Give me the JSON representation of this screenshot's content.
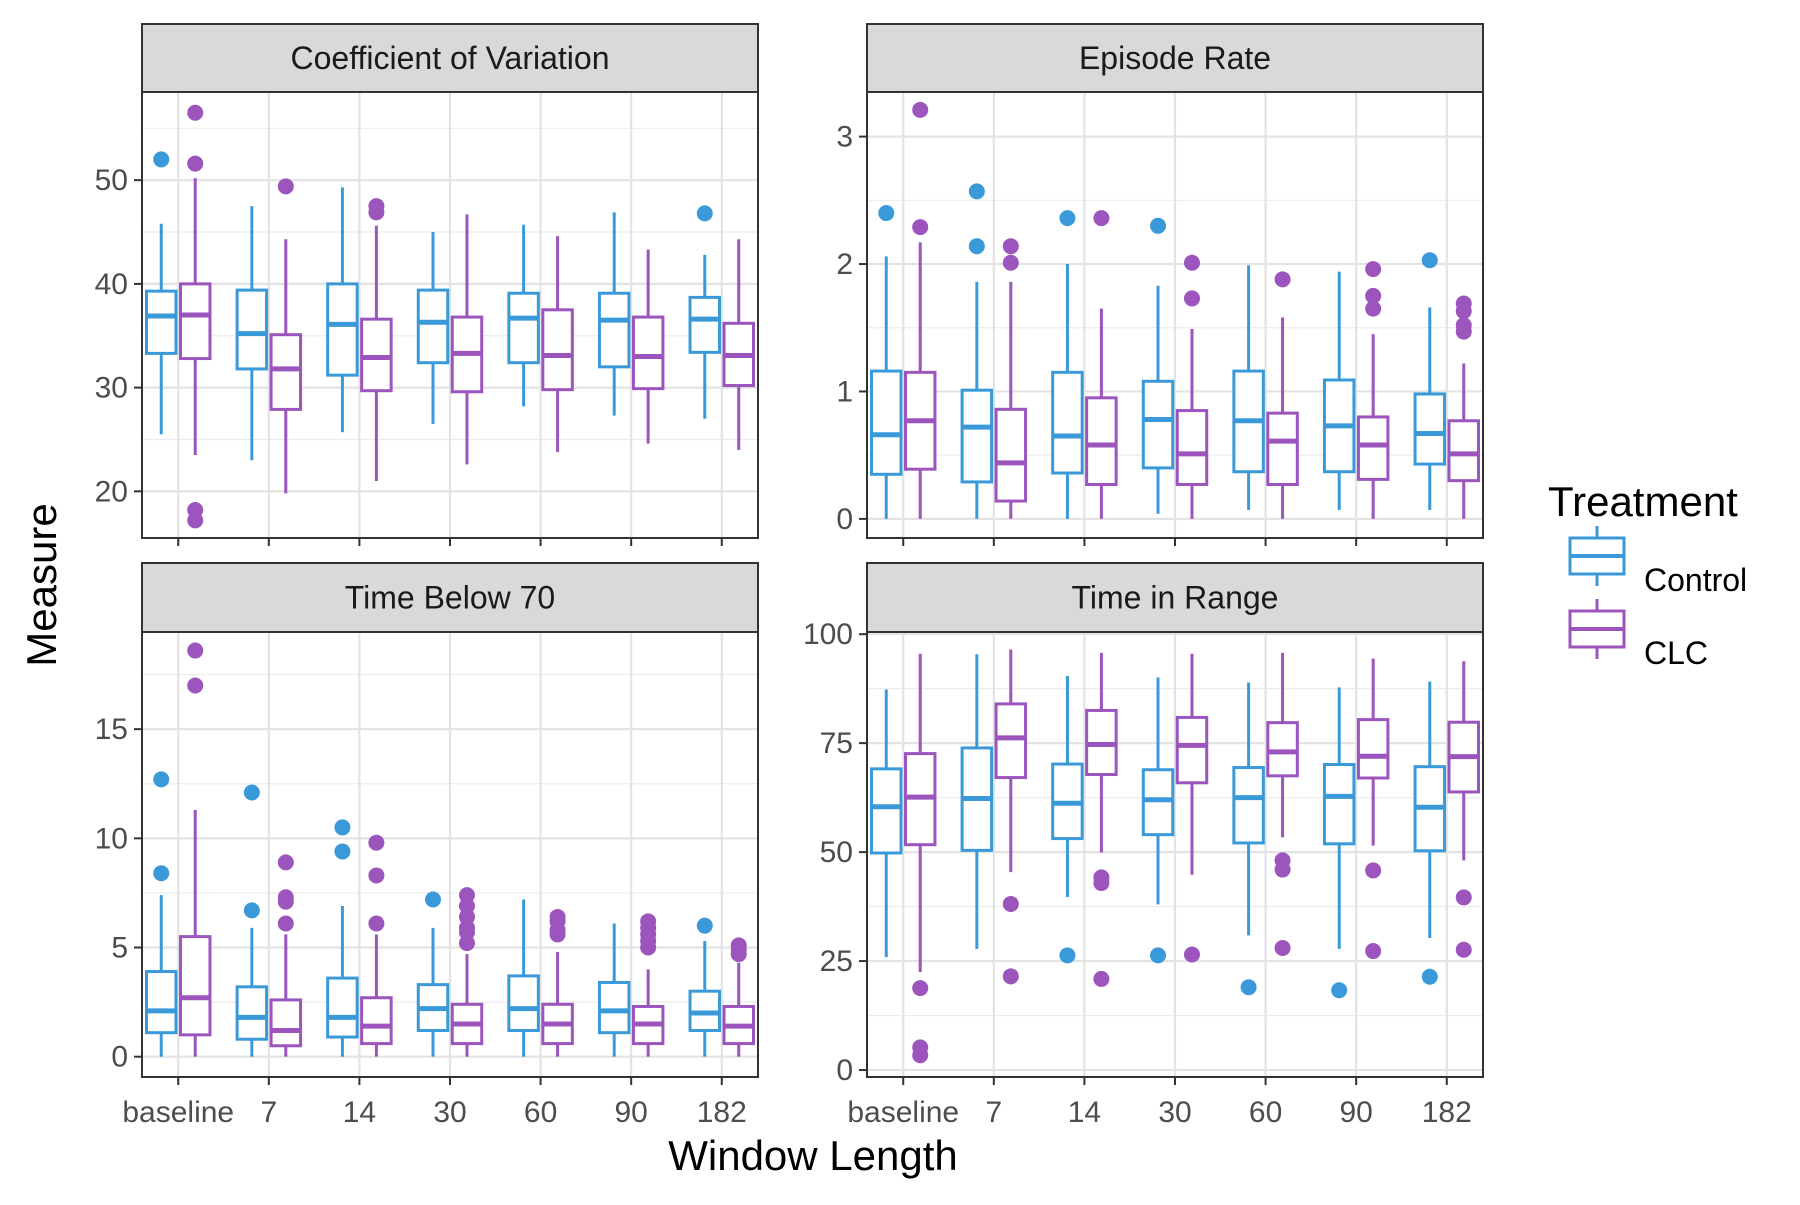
{
  "chart_data": {
    "type": "box",
    "xlabel": "Window Length",
    "ylabel": "Measure",
    "categories": [
      "baseline",
      "7",
      "14",
      "30",
      "60",
      "90",
      "182"
    ],
    "legend": {
      "title": "Treatment",
      "placement": "right",
      "entries": [
        {
          "name": "Control",
          "color": "#3a9ad9"
        },
        {
          "name": "CLC",
          "color": "#9b55bd"
        }
      ]
    },
    "grid": true,
    "panels": [
      {
        "title": "Coefficient of Variation",
        "ylim": [
          15.5,
          58.5
        ],
        "yticks": [
          20,
          30,
          40,
          50
        ],
        "series": [
          {
            "name": "Control",
            "boxes": [
              {
                "whisker_low": 25.5,
                "q1": 33.3,
                "median": 36.9,
                "q3": 39.3,
                "whisker_high": 45.8,
                "outliers": [
                  52.0
                ]
              },
              {
                "whisker_low": 23.0,
                "q1": 31.8,
                "median": 35.2,
                "q3": 39.4,
                "whisker_high": 47.5,
                "outliers": []
              },
              {
                "whisker_low": 25.7,
                "q1": 31.2,
                "median": 36.1,
                "q3": 40.0,
                "whisker_high": 49.3,
                "outliers": []
              },
              {
                "whisker_low": 26.5,
                "q1": 32.4,
                "median": 36.3,
                "q3": 39.4,
                "whisker_high": 45.0,
                "outliers": []
              },
              {
                "whisker_low": 28.2,
                "q1": 32.4,
                "median": 36.7,
                "q3": 39.1,
                "whisker_high": 45.7,
                "outliers": []
              },
              {
                "whisker_low": 27.3,
                "q1": 32.0,
                "median": 36.5,
                "q3": 39.1,
                "whisker_high": 46.9,
                "outliers": []
              },
              {
                "whisker_low": 27.0,
                "q1": 33.4,
                "median": 36.6,
                "q3": 38.7,
                "whisker_high": 42.8,
                "outliers": [
                  46.8
                ]
              }
            ]
          },
          {
            "name": "CLC",
            "boxes": [
              {
                "whisker_low": 23.5,
                "q1": 32.8,
                "median": 37.0,
                "q3": 40.0,
                "whisker_high": 50.2,
                "outliers": [
                  56.5,
                  51.6,
                  18.2,
                  17.2
                ]
              },
              {
                "whisker_low": 19.8,
                "q1": 27.9,
                "median": 31.8,
                "q3": 35.1,
                "whisker_high": 44.3,
                "outliers": [
                  49.4
                ]
              },
              {
                "whisker_low": 21.0,
                "q1": 29.7,
                "median": 32.9,
                "q3": 36.6,
                "whisker_high": 45.6,
                "outliers": [
                  47.5,
                  46.9
                ]
              },
              {
                "whisker_low": 22.6,
                "q1": 29.6,
                "median": 33.3,
                "q3": 36.8,
                "whisker_high": 46.7,
                "outliers": []
              },
              {
                "whisker_low": 23.8,
                "q1": 29.8,
                "median": 33.1,
                "q3": 37.5,
                "whisker_high": 44.6,
                "outliers": []
              },
              {
                "whisker_low": 24.6,
                "q1": 29.9,
                "median": 33.0,
                "q3": 36.8,
                "whisker_high": 43.3,
                "outliers": []
              },
              {
                "whisker_low": 24.0,
                "q1": 30.2,
                "median": 33.1,
                "q3": 36.2,
                "whisker_high": 44.3,
                "outliers": []
              }
            ]
          }
        ]
      },
      {
        "title": "Episode Rate",
        "ylim": [
          -0.15,
          3.35
        ],
        "yticks": [
          0,
          1,
          2,
          3
        ],
        "series": [
          {
            "name": "Control",
            "boxes": [
              {
                "whisker_low": 0.0,
                "q1": 0.35,
                "median": 0.66,
                "q3": 1.16,
                "whisker_high": 2.06,
                "outliers": [
                  2.4
                ]
              },
              {
                "whisker_low": 0.0,
                "q1": 0.29,
                "median": 0.72,
                "q3": 1.01,
                "whisker_high": 1.86,
                "outliers": [
                  2.57,
                  2.14
                ]
              },
              {
                "whisker_low": 0.0,
                "q1": 0.36,
                "median": 0.65,
                "q3": 1.15,
                "whisker_high": 2.0,
                "outliers": [
                  2.36
                ]
              },
              {
                "whisker_low": 0.04,
                "q1": 0.4,
                "median": 0.78,
                "q3": 1.08,
                "whisker_high": 1.83,
                "outliers": [
                  2.3
                ]
              },
              {
                "whisker_low": 0.07,
                "q1": 0.37,
                "median": 0.77,
                "q3": 1.16,
                "whisker_high": 1.99,
                "outliers": []
              },
              {
                "whisker_low": 0.07,
                "q1": 0.37,
                "median": 0.73,
                "q3": 1.09,
                "whisker_high": 1.94,
                "outliers": []
              },
              {
                "whisker_low": 0.07,
                "q1": 0.43,
                "median": 0.67,
                "q3": 0.98,
                "whisker_high": 1.66,
                "outliers": [
                  2.03
                ]
              }
            ]
          },
          {
            "name": "CLC",
            "boxes": [
              {
                "whisker_low": 0.0,
                "q1": 0.39,
                "median": 0.77,
                "q3": 1.15,
                "whisker_high": 2.17,
                "outliers": [
                  3.21,
                  2.29
                ]
              },
              {
                "whisker_low": 0.0,
                "q1": 0.14,
                "median": 0.44,
                "q3": 0.86,
                "whisker_high": 1.86,
                "outliers": [
                  2.14,
                  2.01
                ]
              },
              {
                "whisker_low": 0.0,
                "q1": 0.27,
                "median": 0.58,
                "q3": 0.95,
                "whisker_high": 1.65,
                "outliers": [
                  2.36
                ]
              },
              {
                "whisker_low": 0.0,
                "q1": 0.27,
                "median": 0.51,
                "q3": 0.85,
                "whisker_high": 1.49,
                "outliers": [
                  2.01,
                  1.73
                ]
              },
              {
                "whisker_low": 0.0,
                "q1": 0.27,
                "median": 0.61,
                "q3": 0.83,
                "whisker_high": 1.58,
                "outliers": [
                  1.88
                ]
              },
              {
                "whisker_low": 0.0,
                "q1": 0.31,
                "median": 0.58,
                "q3": 0.8,
                "whisker_high": 1.45,
                "outliers": [
                  1.96,
                  1.75,
                  1.65
                ]
              },
              {
                "whisker_low": 0.0,
                "q1": 0.3,
                "median": 0.51,
                "q3": 0.77,
                "whisker_high": 1.22,
                "outliers": [
                  1.69,
                  1.63,
                  1.52,
                  1.47
                ]
              }
            ]
          }
        ]
      },
      {
        "title": "Time Below 70",
        "ylim": [
          -0.93,
          19.45
        ],
        "yticks": [
          0,
          5,
          10,
          15
        ],
        "series": [
          {
            "name": "Control",
            "boxes": [
              {
                "whisker_low": 0.0,
                "q1": 1.1,
                "median": 2.1,
                "q3": 3.9,
                "whisker_high": 7.4,
                "outliers": [
                  12.7,
                  8.4
                ]
              },
              {
                "whisker_low": 0.0,
                "q1": 0.8,
                "median": 1.8,
                "q3": 3.2,
                "whisker_high": 5.9,
                "outliers": [
                  12.1,
                  6.7
                ]
              },
              {
                "whisker_low": 0.0,
                "q1": 0.9,
                "median": 1.8,
                "q3": 3.6,
                "whisker_high": 6.9,
                "outliers": [
                  10.5,
                  9.4
                ]
              },
              {
                "whisker_low": 0.0,
                "q1": 1.2,
                "median": 2.2,
                "q3": 3.3,
                "whisker_high": 5.9,
                "outliers": [
                  7.2
                ]
              },
              {
                "whisker_low": 0.0,
                "q1": 1.2,
                "median": 2.2,
                "q3": 3.7,
                "whisker_high": 7.2,
                "outliers": []
              },
              {
                "whisker_low": 0.0,
                "q1": 1.1,
                "median": 2.1,
                "q3": 3.4,
                "whisker_high": 6.1,
                "outliers": []
              },
              {
                "whisker_low": 0.0,
                "q1": 1.2,
                "median": 2.0,
                "q3": 3.0,
                "whisker_high": 5.3,
                "outliers": [
                  6.0
                ]
              }
            ]
          },
          {
            "name": "CLC",
            "boxes": [
              {
                "whisker_low": 0.0,
                "q1": 1.0,
                "median": 2.7,
                "q3": 5.5,
                "whisker_high": 11.3,
                "outliers": [
                  18.6,
                  17.0
                ]
              },
              {
                "whisker_low": 0.0,
                "q1": 0.5,
                "median": 1.2,
                "q3": 2.6,
                "whisker_high": 5.6,
                "outliers": [
                  8.9,
                  7.3,
                  7.1,
                  6.1
                ]
              },
              {
                "whisker_low": 0.0,
                "q1": 0.6,
                "median": 1.4,
                "q3": 2.7,
                "whisker_high": 5.6,
                "outliers": [
                  9.8,
                  8.3,
                  6.1
                ]
              },
              {
                "whisker_low": 0.0,
                "q1": 0.6,
                "median": 1.5,
                "q3": 2.4,
                "whisker_high": 4.7,
                "outliers": [
                  7.4,
                  6.9,
                  6.4,
                  5.9,
                  5.7,
                  5.2
                ]
              },
              {
                "whisker_low": 0.0,
                "q1": 0.6,
                "median": 1.5,
                "q3": 2.4,
                "whisker_high": 4.8,
                "outliers": [
                  6.4,
                  6.2,
                  5.8,
                  5.6
                ]
              },
              {
                "whisker_low": 0.0,
                "q1": 0.6,
                "median": 1.5,
                "q3": 2.3,
                "whisker_high": 4.0,
                "outliers": [
                  6.2,
                  5.9,
                  5.6,
                  5.3,
                  5.0
                ]
              },
              {
                "whisker_low": 0.0,
                "q1": 0.6,
                "median": 1.4,
                "q3": 2.3,
                "whisker_high": 4.3,
                "outliers": [
                  5.1,
                  4.9,
                  4.7
                ]
              }
            ]
          }
        ]
      },
      {
        "title": "Time in Range",
        "ylim": [
          -1.6,
          100.5
        ],
        "yticks": [
          0,
          25,
          50,
          75,
          100
        ],
        "series": [
          {
            "name": "Control",
            "boxes": [
              {
                "whisker_low": 25.9,
                "q1": 49.8,
                "median": 60.4,
                "q3": 69.1,
                "whisker_high": 87.3,
                "outliers": []
              },
              {
                "whisker_low": 27.8,
                "q1": 50.4,
                "median": 62.3,
                "q3": 73.9,
                "whisker_high": 95.4,
                "outliers": []
              },
              {
                "whisker_low": 39.7,
                "q1": 53.1,
                "median": 61.2,
                "q3": 70.2,
                "whisker_high": 90.4,
                "outliers": [
                  26.3
                ]
              },
              {
                "whisker_low": 38.0,
                "q1": 54.0,
                "median": 62.0,
                "q3": 68.9,
                "whisker_high": 90.1,
                "outliers": [
                  26.3
                ]
              },
              {
                "whisker_low": 30.9,
                "q1": 52.1,
                "median": 62.5,
                "q3": 69.4,
                "whisker_high": 88.9,
                "outliers": [
                  19.0
                ]
              },
              {
                "whisker_low": 27.8,
                "q1": 51.9,
                "median": 62.8,
                "q3": 70.1,
                "whisker_high": 87.8,
                "outliers": [
                  18.3
                ]
              },
              {
                "whisker_low": 30.3,
                "q1": 50.3,
                "median": 60.3,
                "q3": 69.6,
                "whisker_high": 89.1,
                "outliers": [
                  21.4
                ]
              }
            ]
          },
          {
            "name": "CLC",
            "boxes": [
              {
                "whisker_low": 22.5,
                "q1": 51.7,
                "median": 62.6,
                "q3": 72.6,
                "whisker_high": 95.5,
                "outliers": [
                  18.8,
                  5.2,
                  3.4
                ]
              },
              {
                "whisker_low": 45.4,
                "q1": 67.1,
                "median": 76.2,
                "q3": 84.0,
                "whisker_high": 96.5,
                "outliers": [
                  38.1,
                  21.5
                ]
              },
              {
                "whisker_low": 49.9,
                "q1": 67.8,
                "median": 74.7,
                "q3": 82.5,
                "whisker_high": 95.7,
                "outliers": [
                  44.2,
                  42.9,
                  20.9
                ]
              },
              {
                "whisker_low": 44.8,
                "q1": 65.9,
                "median": 74.5,
                "q3": 80.9,
                "whisker_high": 95.5,
                "outliers": [
                  26.5
                ]
              },
              {
                "whisker_low": 53.4,
                "q1": 67.5,
                "median": 73.0,
                "q3": 79.7,
                "whisker_high": 95.7,
                "outliers": [
                  48.1,
                  46.0,
                  28.0
                ]
              },
              {
                "whisker_low": 51.5,
                "q1": 67.0,
                "median": 72.0,
                "q3": 80.4,
                "whisker_high": 94.4,
                "outliers": [
                  45.8,
                  27.3
                ]
              },
              {
                "whisker_low": 48.1,
                "q1": 63.8,
                "median": 71.9,
                "q3": 79.8,
                "whisker_high": 93.8,
                "outliers": [
                  39.6,
                  27.6
                ]
              }
            ]
          }
        ]
      }
    ]
  }
}
